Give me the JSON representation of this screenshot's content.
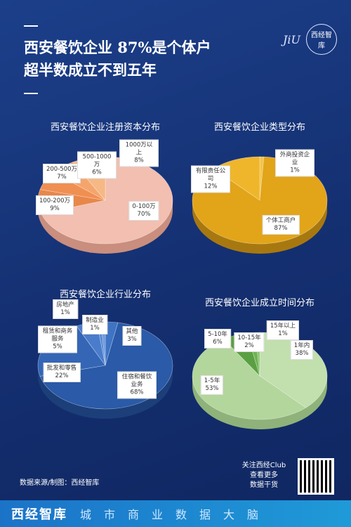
{
  "header": {
    "title_lines": [
      "西安餐饮企业 87%是个体户",
      "超半数成立不到五年"
    ],
    "logo_mark": "JiU",
    "logo_text": "西经智库"
  },
  "chart_data": [
    {
      "type": "pie",
      "title": "西安餐饮企业注册资本分布",
      "categories": [
        "0-100万",
        "100-200万",
        "200-500万",
        "500-1000万",
        "1000万以上"
      ],
      "values": [
        70,
        9,
        7,
        6,
        8
      ],
      "value_labels": [
        "70%",
        "9%",
        "7%",
        "6%",
        "8%"
      ],
      "colors": [
        "#f2bfb0",
        "#e8874a",
        "#f08f52",
        "#f5a56c",
        "#f6b884"
      ]
    },
    {
      "type": "pie",
      "title": "西安餐饮企业类型分布",
      "categories": [
        "外商投资企业",
        "个体工商户",
        "有限责任公司"
      ],
      "values": [
        1,
        87,
        12
      ],
      "value_labels": [
        "1%",
        "87%",
        "12%"
      ],
      "colors": [
        "#f3c44a",
        "#e2a418",
        "#efb62c"
      ]
    },
    {
      "type": "pie",
      "title": "西安餐饮企业行业分布",
      "categories": [
        "其他",
        "住宿和餐饮业务",
        "批发和零售",
        "租赁和商务服务",
        "房地产",
        "制造业"
      ],
      "values": [
        3,
        68,
        22,
        5,
        1,
        1
      ],
      "value_labels": [
        "3%",
        "68%",
        "22%",
        "5%",
        "1%",
        "1%"
      ],
      "colors": [
        "#3f73c4",
        "#2a5aa8",
        "#3566b6",
        "#4a7ccc",
        "#5a8ad6",
        "#6a98de"
      ]
    },
    {
      "type": "pie",
      "title": "西安餐饮企业成立时间分布",
      "categories": [
        "1年内",
        "1-5年",
        "5-10年",
        "10-15年",
        "15年以上"
      ],
      "values": [
        38,
        53,
        6,
        2,
        1
      ],
      "value_labels": [
        "38%",
        "53%",
        "6%",
        "2%",
        "1%"
      ],
      "colors": [
        "#c2dfae",
        "#b3d69c",
        "#5aa042",
        "#6fb454",
        "#88c46c"
      ]
    }
  ],
  "footer": {
    "source": "数据来源/制图：西经智库",
    "follow_lines": [
      "关注西经Club",
      "查看更多",
      "数据干货"
    ],
    "brand": "西经智库",
    "slogan": "城市商业数据大脑"
  }
}
